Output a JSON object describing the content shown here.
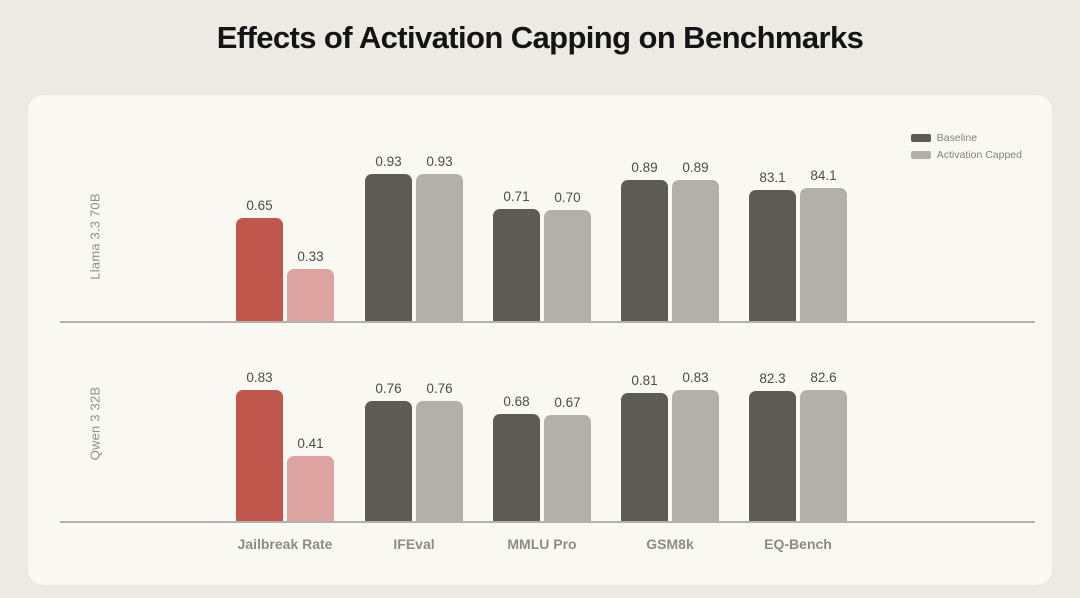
{
  "title": "Effects of Activation Capping on Benchmarks",
  "legend": [
    {
      "label": "Baseline",
      "color": "#5d5b56"
    },
    {
      "label": "Activation Capped",
      "color": "#b2b0a9"
    }
  ],
  "colors": {
    "page_bg": "#ecebe3",
    "panel_bg": "#f9f8f2",
    "baseline_bar": "#5d5b56",
    "capped_bar": "#b2b0a9",
    "jailbreak_baseline_bar": "#bf574d",
    "jailbreak_capped_bar": "#dda3a0",
    "axis_line": "#b3b1aa",
    "value_text": "#4e4c47",
    "label_text": "#8e8c84"
  },
  "chart_data": {
    "type": "bar",
    "title": "Effects of Activation Capping on Benchmarks",
    "categories": [
      "Jailbreak Rate",
      "IFEval",
      "MMLU Pro",
      "GSM8k",
      "EQ-Bench"
    ],
    "legend_position": "top-right",
    "grid": false,
    "ylim_normalized": [
      0,
      1
    ],
    "scale_note": "EQ-Bench values are on a 0-100 scale; all other values on 0-1; bars share one normalized scale per row",
    "rows": [
      {
        "model": "Llama 3.3 70B",
        "series": [
          {
            "name": "Baseline",
            "values": [
              0.65,
              0.93,
              0.71,
              0.89,
              83.1
            ],
            "labels": [
              "0.65",
              "0.93",
              "0.71",
              "0.89",
              "83.1"
            ]
          },
          {
            "name": "Activation Capped",
            "values": [
              0.33,
              0.93,
              0.7,
              0.89,
              84.1
            ],
            "labels": [
              "0.33",
              "0.93",
              "0.70",
              "0.89",
              "84.1"
            ]
          }
        ]
      },
      {
        "model": "Qwen 3 32B",
        "series": [
          {
            "name": "Baseline",
            "values": [
              0.83,
              0.76,
              0.68,
              0.81,
              82.3
            ],
            "labels": [
              "0.83",
              "0.76",
              "0.68",
              "0.81",
              "82.3"
            ]
          },
          {
            "name": "Activation Capped",
            "values": [
              0.41,
              0.76,
              0.67,
              0.83,
              82.6
            ],
            "labels": [
              "0.41",
              "0.76",
              "0.67",
              "0.83",
              "82.6"
            ]
          }
        ]
      }
    ]
  }
}
